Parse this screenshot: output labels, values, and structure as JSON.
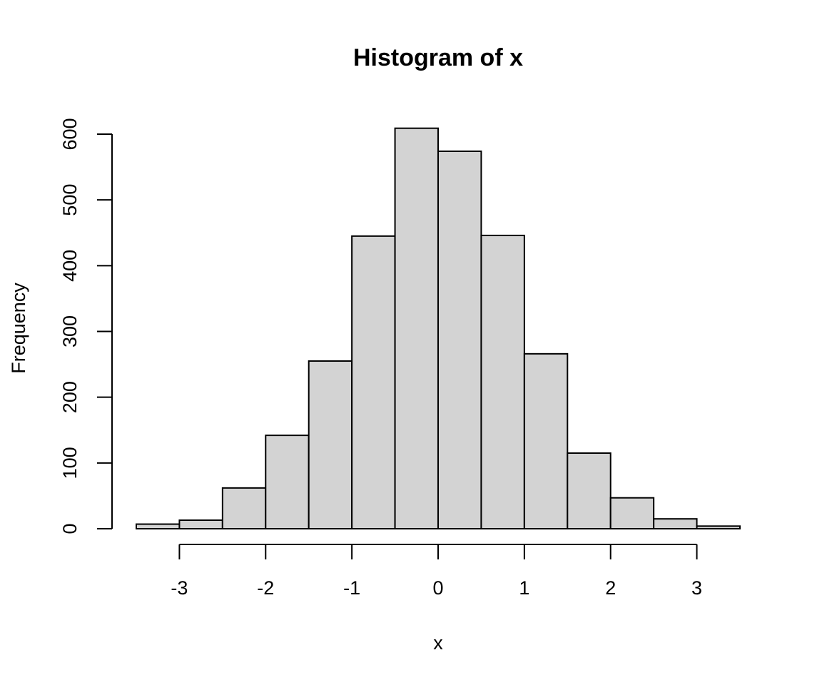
{
  "chart_data": {
    "type": "bar",
    "title": "Histogram of x",
    "xlabel": "x",
    "ylabel": "Frequency",
    "bin_edges": [
      -3.5,
      -3.0,
      -2.5,
      -2.0,
      -1.5,
      -1.0,
      -0.5,
      0.0,
      0.5,
      1.0,
      1.5,
      2.0,
      2.5,
      3.0,
      3.5
    ],
    "values": [
      7,
      13,
      62,
      142,
      255,
      445,
      609,
      574,
      446,
      266,
      115,
      47,
      15,
      4
    ],
    "x_ticks": [
      "-3",
      "-2",
      "-1",
      "0",
      "1",
      "2",
      "3"
    ],
    "y_ticks": [
      "0",
      "100",
      "200",
      "300",
      "400",
      "500",
      "600"
    ],
    "xlim": [
      -3.5,
      3.5
    ],
    "ylim": [
      0,
      600
    ],
    "bar_color": "#d3d3d3",
    "grid": false,
    "legend": "none"
  }
}
